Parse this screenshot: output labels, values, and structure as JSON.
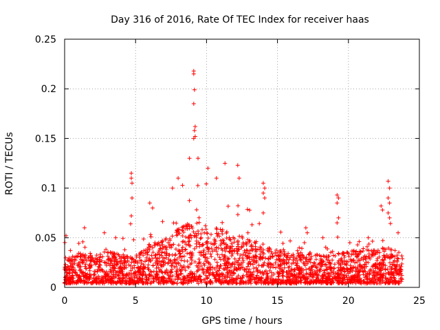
{
  "chart_data": {
    "type": "scatter",
    "title": "Day 316 of 2016, Rate Of TEC Index for receiver haas",
    "xlabel": "GPS time / hours",
    "ylabel": "ROTI / TECUs",
    "xlim": [
      0,
      25
    ],
    "ylim": [
      0,
      0.25
    ],
    "xticks": [
      0,
      5,
      10,
      15,
      20,
      25
    ],
    "yticks": [
      0,
      0.05,
      0.1,
      0.15,
      0.2,
      0.25
    ],
    "xtick_labels": [
      "0",
      "5",
      "10",
      "15",
      "20",
      "25"
    ],
    "ytick_labels": [
      "0",
      "0.05",
      "0.1",
      "0.15",
      "0.2",
      "0.25"
    ],
    "grid": true,
    "marker": "plus",
    "color": "#ff0000",
    "series": [
      {
        "name": "ROTI",
        "x_range": [
          0,
          23.8
        ],
        "baseline_envelope": [
          [
            0,
            0.025
          ],
          [
            1,
            0.03
          ],
          [
            2,
            0.03
          ],
          [
            3,
            0.032
          ],
          [
            4,
            0.03
          ],
          [
            5,
            0.028
          ],
          [
            6,
            0.04
          ],
          [
            7,
            0.045
          ],
          [
            8,
            0.055
          ],
          [
            9,
            0.065
          ],
          [
            10,
            0.06
          ],
          [
            11,
            0.055
          ],
          [
            12,
            0.05
          ],
          [
            13,
            0.045
          ],
          [
            14,
            0.04
          ],
          [
            15,
            0.035
          ],
          [
            16,
            0.03
          ],
          [
            17,
            0.032
          ],
          [
            18,
            0.03
          ],
          [
            19,
            0.03
          ],
          [
            20,
            0.032
          ],
          [
            21,
            0.035
          ],
          [
            22,
            0.035
          ],
          [
            23,
            0.035
          ],
          [
            23.8,
            0.03
          ]
        ],
        "notable_points": [
          [
            9.1,
            0.218
          ],
          [
            9.1,
            0.215
          ],
          [
            9.15,
            0.199
          ],
          [
            9.1,
            0.185
          ],
          [
            9.2,
            0.162
          ],
          [
            9.15,
            0.158
          ],
          [
            9.2,
            0.152
          ],
          [
            9.1,
            0.15
          ],
          [
            4.7,
            0.115
          ],
          [
            4.7,
            0.11
          ],
          [
            4.75,
            0.105
          ],
          [
            4.75,
            0.09
          ],
          [
            4.7,
            0.072
          ],
          [
            4.65,
            0.064
          ],
          [
            8.8,
            0.13
          ],
          [
            9.4,
            0.13
          ],
          [
            11.3,
            0.125
          ],
          [
            12.2,
            0.123
          ],
          [
            12.3,
            0.11
          ],
          [
            10.7,
            0.11
          ],
          [
            14.0,
            0.105
          ],
          [
            14.1,
            0.1
          ],
          [
            14.0,
            0.095
          ],
          [
            14.1,
            0.09
          ],
          [
            14.0,
            0.075
          ],
          [
            19.2,
            0.093
          ],
          [
            19.3,
            0.09
          ],
          [
            19.2,
            0.085
          ],
          [
            19.3,
            0.07
          ],
          [
            19.2,
            0.065
          ],
          [
            22.8,
            0.107
          ],
          [
            22.9,
            0.1
          ],
          [
            22.8,
            0.09
          ],
          [
            22.9,
            0.085
          ],
          [
            22.8,
            0.075
          ],
          [
            22.9,
            0.07
          ],
          [
            22.3,
            0.082
          ],
          [
            22.4,
            0.078
          ],
          [
            6.0,
            0.085
          ],
          [
            6.2,
            0.08
          ],
          [
            7.6,
            0.1
          ],
          [
            8.0,
            0.11
          ],
          [
            10.1,
            0.12
          ],
          [
            1.4,
            0.06
          ],
          [
            0.1,
            0.052
          ],
          [
            2.8,
            0.055
          ],
          [
            3.6,
            0.05
          ],
          [
            17.0,
            0.06
          ],
          [
            17.1,
            0.055
          ],
          [
            16.9,
            0.045
          ],
          [
            18.2,
            0.05
          ],
          [
            20.1,
            0.045
          ],
          [
            21.4,
            0.05
          ],
          [
            23.5,
            0.055
          ]
        ]
      }
    ]
  }
}
